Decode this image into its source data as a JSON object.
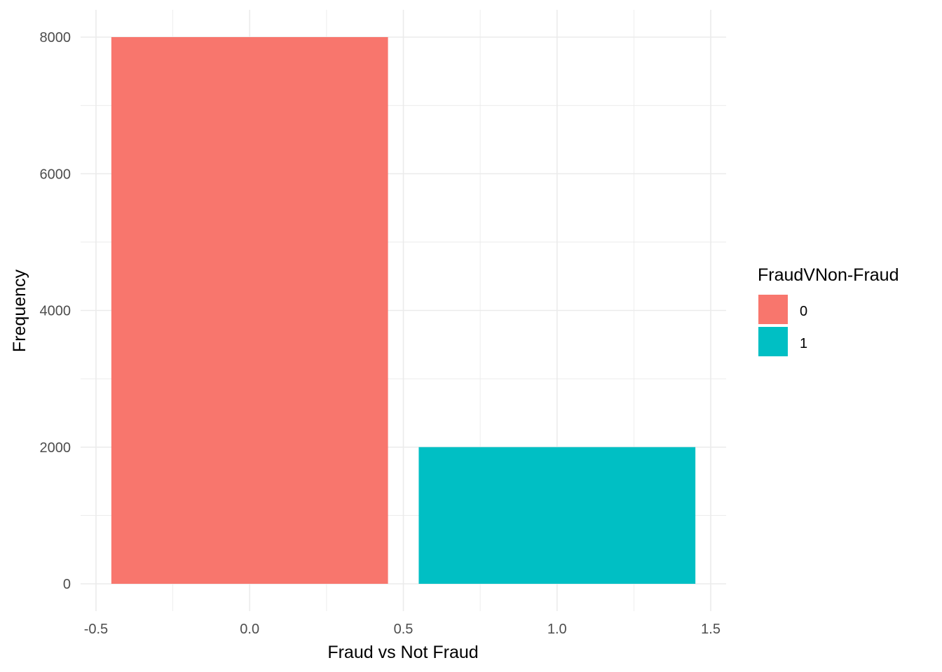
{
  "chart_data": {
    "type": "bar",
    "xlabel": "Fraud vs Not Fraud",
    "ylabel": "Frequency",
    "xlim": [
      -0.55,
      1.55
    ],
    "ylim": [
      0,
      8000
    ],
    "x_ticks": [
      -0.5,
      0.0,
      0.5,
      1.0,
      1.5
    ],
    "x_tick_labels": [
      "-0.5",
      "0.0",
      "0.5",
      "1.0",
      "1.5"
    ],
    "y_ticks": [
      0,
      2000,
      4000,
      6000,
      8000
    ],
    "y_tick_labels": [
      "0",
      "2000",
      "4000",
      "6000",
      "8000"
    ],
    "bar_width": 0.9,
    "grid": true,
    "legend": {
      "title": "FraudVNon-Fraud",
      "placement": "right",
      "entries": [
        {
          "label": "0",
          "color": "#F8766D"
        },
        {
          "label": "1",
          "color": "#00BFC4"
        }
      ]
    },
    "bars": [
      {
        "x": 0,
        "value": 8000,
        "group": "0",
        "color": "#F8766D"
      },
      {
        "x": 1,
        "value": 2000,
        "group": "1",
        "color": "#00BFC4"
      }
    ]
  }
}
